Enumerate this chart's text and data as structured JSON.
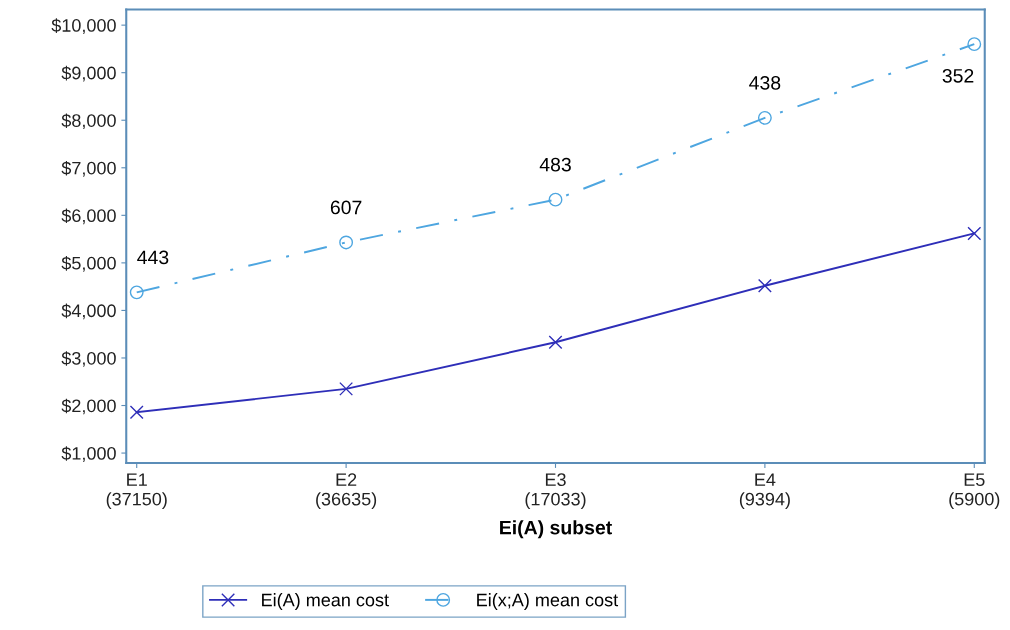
{
  "chart_data": {
    "type": "line",
    "xlabel": "Ei(A) subset",
    "categories": [
      "E1\n(37150)",
      "E2\n(36635)",
      "E3\n(17033)",
      "E4\n(9394)",
      "E5\n(5900)"
    ],
    "series": [
      {
        "name": "Ei(A) mean cost",
        "color": "#2e2eb8",
        "marker": "cross",
        "line_style": "solid",
        "values": [
          1860,
          2350,
          3330,
          4520,
          5620
        ]
      },
      {
        "name": "Ei(x;A) mean cost",
        "color": "#4ea6e0",
        "marker": "circle",
        "line_style": "dashdot",
        "values": [
          4380,
          5430,
          6330,
          8050,
          9600
        ]
      }
    ],
    "annotations": [
      {
        "text": "443",
        "x": "E1\n(37150)",
        "y": 4380
      },
      {
        "text": "607",
        "x": "E2\n(36635)",
        "y": 5430
      },
      {
        "text": "483",
        "x": "E3\n(17033)",
        "y": 6330
      },
      {
        "text": "438",
        "x": "E4\n(9394)",
        "y": 8050
      },
      {
        "text": "352",
        "x": "E5\n(5900)",
        "y": 9600
      }
    ],
    "ylim": [
      790,
      10330
    ],
    "yticks": [
      {
        "value": 1000,
        "label": "$1,000"
      },
      {
        "value": 2000,
        "label": "$2,000"
      },
      {
        "value": 3000,
        "label": "$3,000"
      },
      {
        "value": 4000,
        "label": "$4,000"
      },
      {
        "value": 5000,
        "label": "$5,000"
      },
      {
        "value": 6000,
        "label": "$6,000"
      },
      {
        "value": 7000,
        "label": "$7,000"
      },
      {
        "value": 8000,
        "label": "$8,000"
      },
      {
        "value": 9000,
        "label": "$9,000"
      },
      {
        "value": 10000,
        "label": "$10,000"
      }
    ],
    "grid": false,
    "legend": "bottom"
  }
}
